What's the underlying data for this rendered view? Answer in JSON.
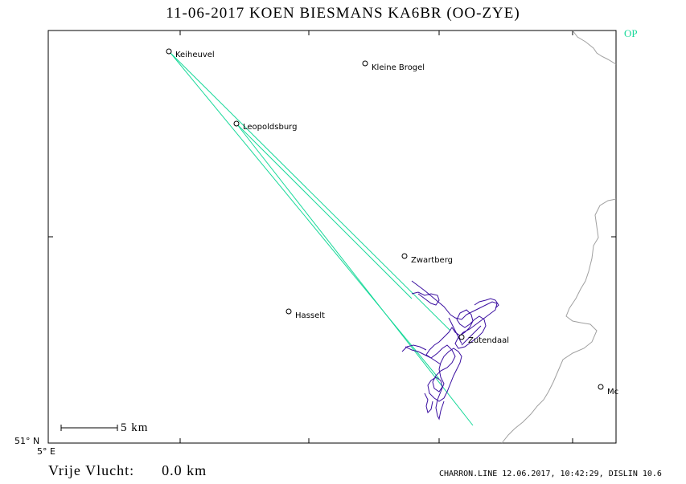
{
  "header": {
    "title": "11-06-2017   KOEN BIESMANS   KA6BR (OO-ZYE)",
    "op_label": "OP"
  },
  "axes": {
    "lat_label": "51° N",
    "lon_label": "5° E"
  },
  "scale_bar": {
    "label": "5 km"
  },
  "places": [
    {
      "name": "Keiheuvel"
    },
    {
      "name": "Kleine Brogel"
    },
    {
      "name": "Leopoldsburg"
    },
    {
      "name": "Zwartberg"
    },
    {
      "name": "Hasselt"
    },
    {
      "name": "Zutendaal"
    },
    {
      "name": "Mc"
    }
  ],
  "footer": {
    "free_flight_label": "Vrije Vlucht:",
    "free_flight_value": "0.0 km",
    "credit": "CHARRON.LINE 12.06.2017, 10:42:29, DISLIN 10.6"
  },
  "colors": {
    "track": "#3a0ea0",
    "route": "#19d99a",
    "border": "#a0a0a0",
    "frame": "#000000"
  }
}
